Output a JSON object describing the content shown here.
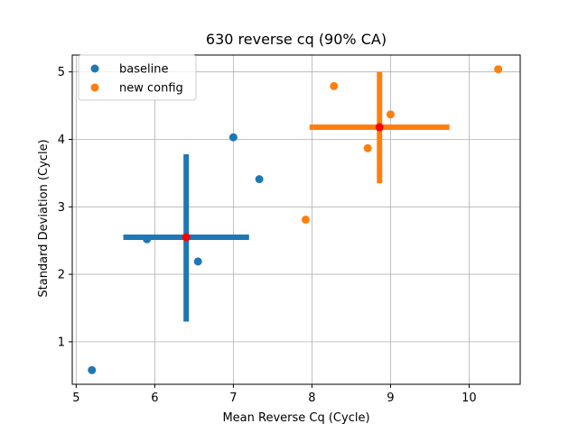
{
  "chart_data": {
    "type": "scatter",
    "title": "630 reverse cq (90% CA)",
    "xlabel": "Mean Reverse Cq (Cycle)",
    "ylabel": "Standard Deviation (Cycle)",
    "xlim": [
      4.95,
      10.65
    ],
    "ylim": [
      0.37,
      5.25
    ],
    "xticks": [
      5,
      6,
      7,
      8,
      9,
      10
    ],
    "yticks": [
      1,
      2,
      3,
      4,
      5
    ],
    "grid": true,
    "legend_position": "top-left",
    "series": [
      {
        "name": "baseline",
        "color": "#1f77b4",
        "points": [
          {
            "x": 5.2,
            "y": 0.58
          },
          {
            "x": 5.9,
            "y": 2.52
          },
          {
            "x": 6.55,
            "y": 2.19
          },
          {
            "x": 7.0,
            "y": 4.03
          },
          {
            "x": 7.33,
            "y": 3.41
          }
        ],
        "center": {
          "x": 6.4,
          "y": 2.55
        },
        "x_interval": [
          5.6,
          7.2
        ],
        "y_interval": [
          1.3,
          3.78
        ]
      },
      {
        "name": "new config",
        "color": "#ff7f0e",
        "points": [
          {
            "x": 7.92,
            "y": 2.81
          },
          {
            "x": 8.28,
            "y": 4.79
          },
          {
            "x": 8.71,
            "y": 3.87
          },
          {
            "x": 9.0,
            "y": 4.37
          },
          {
            "x": 10.37,
            "y": 5.04
          }
        ],
        "center": {
          "x": 8.86,
          "y": 4.18
        },
        "x_interval": [
          7.97,
          9.75
        ],
        "y_interval": [
          3.35,
          5.0
        ]
      }
    ],
    "center_marker_color": "#ff0000"
  }
}
